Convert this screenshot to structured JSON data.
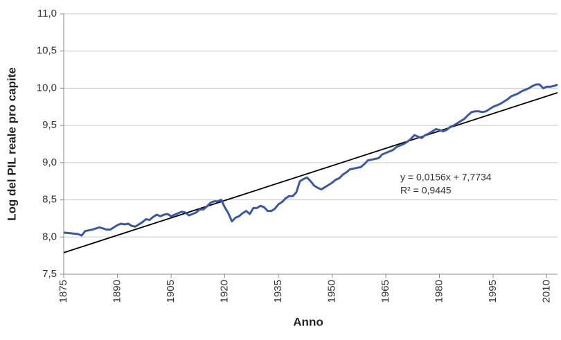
{
  "chart_data": {
    "type": "line",
    "ylabel": "Log del PIL reale pro capite",
    "xlabel": "Anno",
    "x": [
      1875,
      1877,
      1879,
      1880,
      1881,
      1883,
      1885,
      1887,
      1888,
      1890,
      1891,
      1892,
      1893,
      1894,
      1895,
      1897,
      1898,
      1899,
      1900,
      1901,
      1902,
      1903,
      1904,
      1905,
      1906,
      1907,
      1908,
      1909,
      1910,
      1911,
      1912,
      1913,
      1914,
      1915,
      1916,
      1917,
      1918,
      1919,
      1920,
      1921,
      1922,
      1923,
      1924,
      1925,
      1926,
      1927,
      1928,
      1929,
      1930,
      1931,
      1932,
      1933,
      1934,
      1935,
      1936,
      1937,
      1938,
      1939,
      1940,
      1941,
      1942,
      1943,
      1944,
      1945,
      1946,
      1947,
      1948,
      1949,
      1950,
      1951,
      1952,
      1953,
      1954,
      1955,
      1956,
      1957,
      1958,
      1959,
      1960,
      1961,
      1962,
      1963,
      1964,
      1965,
      1966,
      1967,
      1968,
      1969,
      1970,
      1971,
      1972,
      1973,
      1974,
      1975,
      1976,
      1977,
      1978,
      1979,
      1980,
      1981,
      1982,
      1983,
      1984,
      1985,
      1986,
      1987,
      1988,
      1989,
      1990,
      1991,
      1992,
      1993,
      1994,
      1995,
      1996,
      1997,
      1998,
      1999,
      2000,
      2001,
      2002,
      2003,
      2004,
      2005,
      2006,
      2007,
      2008,
      2009,
      2010,
      2011,
      2012,
      2013
    ],
    "series": [
      {
        "color": "#3a58a4",
        "values": [
          8.06,
          8.05,
          8.04,
          8.02,
          8.08,
          8.1,
          8.13,
          8.1,
          8.1,
          8.16,
          8.18,
          8.17,
          8.18,
          8.15,
          8.14,
          8.2,
          8.24,
          8.23,
          8.27,
          8.3,
          8.28,
          8.3,
          8.31,
          8.28,
          8.3,
          8.32,
          8.34,
          8.33,
          8.29,
          8.31,
          8.33,
          8.37,
          8.37,
          8.41,
          8.46,
          8.48,
          8.48,
          8.5,
          8.4,
          8.32,
          8.21,
          8.26,
          8.28,
          8.32,
          8.35,
          8.31,
          8.39,
          8.39,
          8.42,
          8.4,
          8.35,
          8.35,
          8.38,
          8.44,
          8.47,
          8.52,
          8.55,
          8.55,
          8.6,
          8.75,
          8.78,
          8.8,
          8.75,
          8.69,
          8.66,
          8.64,
          8.67,
          8.7,
          8.73,
          8.77,
          8.79,
          8.84,
          8.87,
          8.91,
          8.92,
          8.93,
          8.94,
          8.98,
          9.03,
          9.04,
          9.05,
          9.06,
          9.11,
          9.13,
          9.15,
          9.17,
          9.21,
          9.23,
          9.25,
          9.28,
          9.32,
          9.37,
          9.35,
          9.33,
          9.37,
          9.39,
          9.42,
          9.45,
          9.44,
          9.42,
          9.44,
          9.48,
          9.5,
          9.53,
          9.56,
          9.59,
          9.64,
          9.68,
          9.69,
          9.69,
          9.68,
          9.69,
          9.72,
          9.75,
          9.77,
          9.79,
          9.82,
          9.85,
          9.89,
          9.91,
          9.93,
          9.96,
          9.98,
          10.0,
          10.03,
          10.05,
          10.05,
          10.0,
          10.02,
          10.02,
          10.03,
          10.05
        ]
      }
    ],
    "trendline": {
      "color": "#000000",
      "x": [
        1875,
        2013
      ],
      "values": [
        7.79,
        9.94
      ]
    },
    "annotations": [
      "y = 0,0156x + 7,7734",
      "R² = 0,9445"
    ],
    "xlim": [
      1875,
      2013
    ],
    "xticks": [
      1875,
      1890,
      1905,
      1920,
      1935,
      1950,
      1965,
      1980,
      1995,
      2010
    ],
    "ylim": [
      7.5,
      11.0
    ],
    "yticks": [
      {
        "value": 7.5,
        "label": "7,5"
      },
      {
        "value": 8.0,
        "label": "8,0"
      },
      {
        "value": 8.5,
        "label": "8,5"
      },
      {
        "value": 9.0,
        "label": "9,0"
      },
      {
        "value": 9.5,
        "label": "9,5"
      },
      {
        "value": 10.0,
        "label": "10,0"
      },
      {
        "value": 10.5,
        "label": "10,5"
      },
      {
        "value": 11.0,
        "label": "11,0"
      }
    ],
    "grid": true
  }
}
